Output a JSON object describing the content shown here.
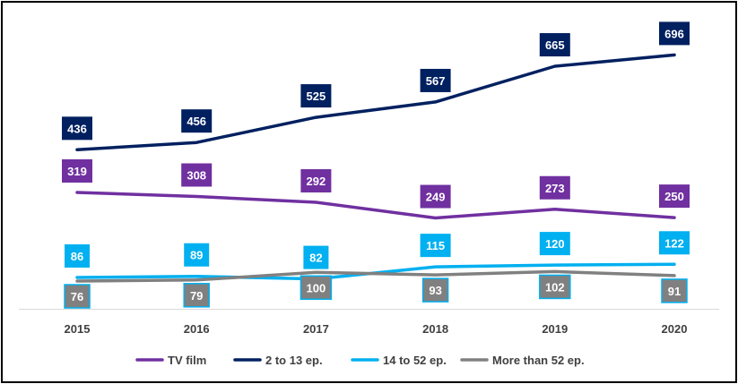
{
  "chart_data": {
    "type": "line",
    "title": "",
    "xlabel": "",
    "ylabel": "",
    "grid": false,
    "legend_position": "bottom",
    "categories": [
      "2015",
      "2016",
      "2017",
      "2018",
      "2019",
      "2020"
    ],
    "ylim": [
      0,
      800
    ],
    "series": [
      {
        "name": "TV film",
        "color": "#7030A0",
        "values": [
          319,
          308,
          292,
          249,
          273,
          250
        ]
      },
      {
        "name": "2 to 13 ep.",
        "color": "#002060",
        "values": [
          436,
          456,
          525,
          567,
          665,
          696
        ]
      },
      {
        "name": "14 to 52 ep.",
        "color": "#00B0F0",
        "values": [
          86,
          89,
          82,
          115,
          120,
          122
        ]
      },
      {
        "name": "More than 52 ep.",
        "color": "#808080",
        "values": [
          76,
          79,
          100,
          93,
          102,
          91
        ]
      }
    ]
  }
}
